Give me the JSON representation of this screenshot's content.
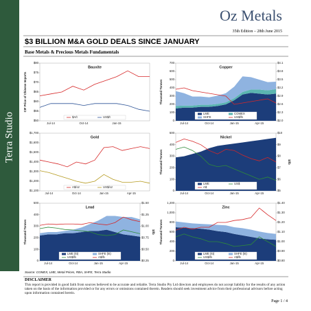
{
  "sidebar": {
    "text": "Terra Studio"
  },
  "header": {
    "brand": "Oz Metals",
    "edition": "35th Edition – 28th June 2015",
    "title": "$3 BILLION M&A GOLD DEALS SINCE JANUARY",
    "subtitle": "Base Metals & Precious Metals Fundamentals"
  },
  "chart_data": [
    {
      "type": "line",
      "title": "Bauxite",
      "y_label": "CIF Price of Chinese Imports",
      "categories": [
        null,
        "Jul-14",
        null,
        null,
        "Oct-14",
        null,
        null,
        "Jan-15",
        null,
        null,
        null
      ],
      "ylim": [
        50,
        80
      ],
      "yticks": [
        {
          "value": 50,
          "label": "$50"
        },
        {
          "value": 55,
          "label": "$55"
        },
        {
          "value": 60,
          "label": "$60"
        },
        {
          "value": 65,
          "label": "$65"
        },
        {
          "value": 70,
          "label": "$70"
        },
        {
          "value": 75,
          "label": "$75"
        },
        {
          "value": 80,
          "label": "$80"
        }
      ],
      "series": [
        {
          "name": "$A/t",
          "color": "#d62728",
          "type": "line",
          "values": [
            63,
            64,
            65,
            68,
            66,
            69,
            71,
            73,
            76,
            73,
            73
          ]
        },
        {
          "name": "US$/t",
          "color": "#2f5597",
          "type": "line",
          "values": [
            57,
            59,
            59,
            59,
            58,
            59,
            59,
            59,
            58,
            56,
            55
          ]
        }
      ]
    },
    {
      "type": "area",
      "title": "Copper",
      "y_label": "Thousand Tonnes",
      "categories": [
        null,
        "Jul-14",
        null,
        null,
        "Oct-14",
        null,
        null,
        "Jan-15",
        null,
        null,
        "Apr-15",
        null,
        null
      ],
      "ylim": [
        0,
        700
      ],
      "yticks": [
        0,
        100,
        200,
        300,
        400,
        500,
        600,
        700
      ],
      "y2lim": [
        2.0,
        4.1
      ],
      "y2ticks": [
        {
          "value": 2.0,
          "label": "$2.0"
        },
        {
          "value": 2.3,
          "label": "$2.3"
        },
        {
          "value": 2.6,
          "label": "$2.6"
        },
        {
          "value": 2.9,
          "label": "$2.9"
        },
        {
          "value": 3.2,
          "label": "$3.2"
        },
        {
          "value": 3.5,
          "label": "$3.5"
        },
        {
          "value": 3.8,
          "label": "$3.8"
        },
        {
          "value": 4.1,
          "label": "$4.1"
        }
      ],
      "series": [
        {
          "name": "LME",
          "color": "#1c3d7a",
          "type": "area",
          "values": [
            150,
            160,
            160,
            170,
            170,
            180,
            200,
            250,
            320,
            340,
            330,
            320,
            330
          ]
        },
        {
          "name": "COMEX",
          "color": "#5bb5b0",
          "type": "area",
          "values": [
            30,
            25,
            25,
            25,
            25,
            25,
            25,
            25,
            30,
            40,
            50,
            50,
            55
          ]
        },
        {
          "name": "SHFE",
          "color": "#8fb3e0",
          "type": "area",
          "values": [
            180,
            150,
            110,
            100,
            90,
            100,
            110,
            140,
            190,
            150,
            120,
            100,
            90
          ]
        },
        {
          "name": "US$/lb",
          "color": "#d62728",
          "type": "line",
          "axis": "y2",
          "values": [
            3.15,
            3.2,
            3.1,
            3.05,
            3.0,
            2.95,
            2.9,
            2.6,
            2.65,
            2.7,
            2.75,
            2.8,
            2.65
          ]
        }
      ]
    },
    {
      "type": "line",
      "title": "Gold",
      "categories": [
        null,
        "Jul-14",
        null,
        null,
        "Oct-14",
        null,
        null,
        "Jan-15",
        null,
        null,
        "Apr-15",
        null,
        null
      ],
      "ylim": [
        1100,
        1700
      ],
      "yticks": [
        {
          "value": 1100,
          "label": "$1,100"
        },
        {
          "value": 1200,
          "label": "$1,200"
        },
        {
          "value": 1300,
          "label": "$1,300"
        },
        {
          "value": 1400,
          "label": "$1,400"
        },
        {
          "value": 1500,
          "label": "$1,500"
        },
        {
          "value": 1600,
          "label": "$1,600"
        },
        {
          "value": 1700,
          "label": "$1,700"
        }
      ],
      "series": [
        {
          "name": "A$/oz",
          "color": "#d62728",
          "type": "line",
          "values": [
            1420,
            1400,
            1380,
            1350,
            1400,
            1380,
            1420,
            1550,
            1560,
            1520,
            1540,
            1560,
            1540
          ]
        },
        {
          "name": "US$/oz",
          "color": "#b59a1e",
          "type": "line",
          "values": [
            1310,
            1290,
            1260,
            1230,
            1200,
            1180,
            1200,
            1270,
            1220,
            1190,
            1190,
            1200,
            1180
          ]
        }
      ]
    },
    {
      "type": "area",
      "title": "Nickel",
      "y_label": "Thousand Tonnes",
      "y2_label": "$/lb",
      "categories": [
        null,
        "Jul-14",
        null,
        null,
        "Oct-14",
        null,
        null,
        "Jan-15",
        null,
        null,
        "Apr-15",
        null,
        null
      ],
      "ylim": [
        0,
        500
      ],
      "yticks": [
        0,
        100,
        200,
        300,
        400,
        500
      ],
      "y2lim": [
        5,
        10
      ],
      "y2ticks": [
        {
          "value": 5,
          "label": "$5"
        },
        {
          "value": 6,
          "label": "$6"
        },
        {
          "value": 7,
          "label": "$7"
        },
        {
          "value": 8,
          "label": "$8"
        },
        {
          "value": 9,
          "label": "$9"
        },
        {
          "value": 10,
          "label": "$10"
        }
      ],
      "series": [
        {
          "name": "LME",
          "color": "#1c3d7a",
          "type": "area",
          "values": [
            290,
            300,
            320,
            340,
            370,
            390,
            400,
            410,
            420,
            430,
            440,
            450,
            460
          ]
        },
        {
          "name": "US$",
          "color": "#2e8b3a",
          "type": "line",
          "axis": "y2",
          "values": [
            8.6,
            8.8,
            8.5,
            8.0,
            7.3,
            7.1,
            7.2,
            6.9,
            6.6,
            6.3,
            6.0,
            6.2,
            5.9
          ]
        },
        {
          "name": "A$",
          "color": "#d62728",
          "type": "line",
          "axis": "y2",
          "values": [
            9.2,
            9.5,
            9.3,
            9.0,
            8.5,
            8.2,
            8.6,
            8.5,
            8.1,
            7.8,
            7.6,
            7.9,
            7.5
          ]
        }
      ]
    },
    {
      "type": "area",
      "title": "Lead",
      "y_label": "Thousand Tonnes",
      "y2_label": "$/lb",
      "categories": [
        null,
        "Jul-14",
        null,
        null,
        "Oct-14",
        null,
        null,
        "Jan-15",
        null,
        null,
        "Apr-15",
        null,
        null
      ],
      "ylim": [
        0,
        500
      ],
      "yticks": [
        0,
        100,
        200,
        300,
        400,
        500
      ],
      "y2lim": [
        0.25,
        1.5
      ],
      "y2ticks": [
        {
          "value": 0.25,
          "label": "$0.25"
        },
        {
          "value": 0.5,
          "label": "$0.50"
        },
        {
          "value": 0.75,
          "label": "$0.75"
        },
        {
          "value": 1.0,
          "label": "$1.00"
        },
        {
          "value": 1.25,
          "label": "$1.25"
        },
        {
          "value": 1.5,
          "label": "$1.50"
        }
      ],
      "series": [
        {
          "name": "LME (kt)",
          "color": "#1c3d7a",
          "type": "area",
          "values": [
            220,
            230,
            230,
            240,
            240,
            250,
            260,
            260,
            270,
            250,
            230,
            220,
            210
          ]
        },
        {
          "name": "SHFE (kt)",
          "color": "#8fb3e0",
          "type": "area",
          "values": [
            20,
            20,
            20,
            20,
            30,
            40,
            60,
            90,
            120,
            140,
            150,
            160,
            150
          ]
        },
        {
          "name": "US$/lb",
          "color": "#2e8b3a",
          "type": "line",
          "axis": "y2",
          "values": [
            0.95,
            0.98,
            0.96,
            0.93,
            0.92,
            0.9,
            0.88,
            0.82,
            0.8,
            0.82,
            0.92,
            0.88,
            0.84
          ]
        },
        {
          "name": "A$/lb",
          "color": "#d62728",
          "type": "line",
          "axis": "y2",
          "values": [
            1.02,
            1.05,
            1.04,
            1.05,
            1.05,
            1.04,
            1.08,
            1.05,
            1.03,
            1.08,
            1.2,
            1.14,
            1.1
          ]
        }
      ]
    },
    {
      "type": "area",
      "title": "Zinc",
      "y_label": "Thousand Tonnes",
      "categories": [
        null,
        "Jul-14",
        null,
        null,
        "Oct-14",
        null,
        null,
        "Jan-15",
        null,
        null,
        "Apr-15",
        null,
        null
      ],
      "ylim": [
        0,
        1200
      ],
      "yticks": [
        0,
        200,
        400,
        600,
        800,
        {
          "value": 1000,
          "label": "1,000"
        },
        {
          "value": 1200,
          "label": "1,200"
        }
      ],
      "y2lim": [
        0.8,
        1.4
      ],
      "y2ticks": [
        {
          "value": 0.8,
          "label": "$0.80"
        },
        {
          "value": 0.9,
          "label": "$0.90"
        },
        {
          "value": 1.0,
          "label": "$1.00"
        },
        {
          "value": 1.1,
          "label": "$1.10"
        },
        {
          "value": 1.2,
          "label": "$1.20"
        },
        {
          "value": 1.3,
          "label": "$1.30"
        },
        {
          "value": 1.4,
          "label": "$1.40"
        }
      ],
      "series": [
        {
          "name": "LME (kt)",
          "color": "#1c3d7a",
          "type": "area",
          "values": [
            700,
            690,
            680,
            670,
            650,
            620,
            600,
            560,
            530,
            500,
            470,
            450,
            440
          ]
        },
        {
          "name": "SHFE (kt)",
          "color": "#8fb3e0",
          "type": "area",
          "values": [
            120,
            110,
            100,
            100,
            110,
            130,
            140,
            140,
            150,
            150,
            140,
            130,
            120
          ]
        },
        {
          "name": "US$/lb",
          "color": "#2e8b3a",
          "type": "line",
          "axis": "y2",
          "values": [
            1.05,
            1.08,
            1.05,
            1.03,
            1.0,
            1.0,
            0.98,
            0.95,
            0.96,
            0.97,
            1.05,
            1.0,
            0.95
          ]
        },
        {
          "name": "A$/lb",
          "color": "#d62728",
          "type": "line",
          "axis": "y2",
          "values": [
            1.12,
            1.15,
            1.13,
            1.15,
            1.15,
            1.2,
            1.2,
            1.22,
            1.23,
            1.25,
            1.35,
            1.28,
            1.22
          ]
        }
      ]
    }
  ],
  "footer": {
    "source": "Source: COMEX, LME, Metal Prices, RBA, SHFE, Terra Studio",
    "disclaimer_title": "DISCLAIMER",
    "disclaimer": "This report is provided in good faith from sources believed to be accurate and reliable. Terra Studio Pty Ltd directors and employees do not accept liability for the results of any action taken on the basis of the information provided or for any errors or omissions contained therein. Readers should seek investment advice from their professional advisors before acting upon information contained herein.",
    "page": "Page 1 / 4"
  }
}
